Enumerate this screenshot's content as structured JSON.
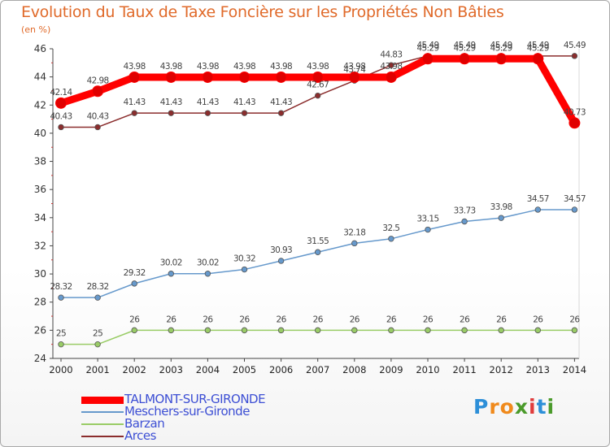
{
  "title": "Evolution du Taux de Taxe Foncière sur les Propriétés Non Bâties",
  "unit": "(en %)",
  "logo": {
    "letters": [
      "P",
      "r",
      "o",
      "x",
      "i",
      "t",
      "i"
    ],
    "colors": [
      "#2d8fd8",
      "#f08a1c",
      "#f08a1c",
      "#4a9a2a",
      "#e03c3c",
      "#2d8fd8",
      "#4a9a2a"
    ]
  },
  "chart_data": {
    "type": "line",
    "title": "Evolution du Taux de Taxe Foncière sur les Propriétés Non Bâties",
    "ylabel": "(en %)",
    "x": [
      "2000",
      "2001",
      "2002",
      "2003",
      "2004",
      "2005",
      "2006",
      "2007",
      "2008",
      "2009",
      "2010",
      "2011",
      "2012",
      "2013",
      "2014"
    ],
    "ylim": [
      24,
      46
    ],
    "yticks": [
      24,
      26,
      28,
      30,
      32,
      34,
      36,
      38,
      40,
      42,
      44,
      46
    ],
    "grid": false,
    "legend_position": "bottom-left",
    "series": [
      {
        "name": "TALMONT-SUR-GIRONDE",
        "color": "#ff0000",
        "values": [
          42.14,
          42.98,
          43.98,
          43.98,
          43.98,
          43.98,
          43.98,
          43.98,
          43.98,
          43.98,
          45.29,
          45.29,
          45.29,
          45.29,
          40.73
        ],
        "labels": [
          "42.14",
          "42.98",
          "43.98",
          "43.98",
          "43.98",
          "43.98",
          "43.98",
          "43.98",
          "43.98",
          "43.98",
          "45.29",
          "45.29",
          "45.29",
          "45.29",
          "40.73"
        ]
      },
      {
        "name": "Meschers-sur-Gironde",
        "color": "#6699cc",
        "values": [
          28.32,
          28.32,
          29.32,
          30.02,
          30.02,
          30.32,
          30.93,
          31.55,
          32.18,
          32.5,
          33.15,
          33.73,
          33.98,
          34.57,
          34.57
        ],
        "labels": [
          "28.32",
          "28.32",
          "29.32",
          "30.02",
          "30.02",
          "30.32",
          "30.93",
          "31.55",
          "32.18",
          "32.5",
          "33.15",
          "33.73",
          "33.98",
          "34.57",
          "34.57"
        ]
      },
      {
        "name": "Barzan",
        "color": "#99cc66",
        "values": [
          25,
          25,
          26,
          26,
          26,
          26,
          26,
          26,
          26,
          26,
          26,
          26,
          26,
          26,
          26
        ],
        "labels": [
          "25",
          "25",
          "26",
          "26",
          "26",
          "26",
          "26",
          "26",
          "26",
          "26",
          "26",
          "26",
          "26",
          "26",
          "26"
        ]
      },
      {
        "name": "Arces",
        "color": "#8b2d2d",
        "values": [
          40.43,
          40.43,
          41.43,
          41.43,
          41.43,
          41.43,
          41.43,
          42.67,
          43.74,
          44.83,
          45.49,
          45.49,
          45.49,
          45.49,
          45.49
        ],
        "labels": [
          "40.43",
          "40.43",
          "41.43",
          "41.43",
          "41.43",
          "41.43",
          "41.43",
          "42.67",
          "43.74",
          "44.83",
          "45.49",
          "45.49",
          "45.49",
          "45.49",
          "45.49"
        ]
      }
    ]
  }
}
